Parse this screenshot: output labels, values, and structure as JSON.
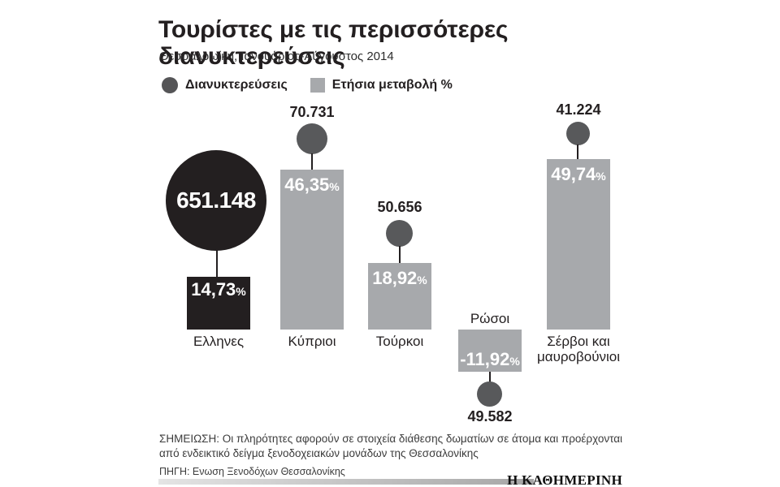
{
  "header": {
    "title": "Τουρίστες με τις περισσότερες διανυκτερεύσεις",
    "subtitle": "Θεσσαλοωίκη, Ιανουάριος-Αύγουστος 2014"
  },
  "legend": {
    "nights_label": "Διανυκτερεύσεις",
    "change_label": "Ετήσια μεταβολή %"
  },
  "colors": {
    "ink": "#231f20",
    "bubble_gray": "#58595b",
    "bar_gray": "#a7a9ac"
  },
  "shared": {
    "percent_suffix": "%"
  },
  "groups": [
    {
      "label": "Ελληνες",
      "nights": "651.148",
      "change": "14,73"
    },
    {
      "label": "Κύπριοι",
      "nights": "70.731",
      "change": "46,35"
    },
    {
      "label": "Τούρκοι",
      "nights": "50.656",
      "change": "18,92"
    },
    {
      "label": "Ρώσοι",
      "nights": "49.582",
      "change": "-11,92"
    },
    {
      "label": "Σέρβοι και μαυροβούνιοι",
      "nights": "41.224",
      "change": "49,74"
    }
  ],
  "chart_data": {
    "type": "bar",
    "title": "Τουρίστες με τις περισσότερες διανυκτερεύσεις",
    "subtitle": "Θεσσαλοωίκη, Ιανουάριος-Αύγουστος 2014",
    "categories": [
      "Ελληνες",
      "Κύπριοι",
      "Τούρκοι",
      "Ρώσοι",
      "Σέρβοι και μαυροβούνιοι"
    ],
    "series": [
      {
        "name": "Διανυκτερεύσεις",
        "type": "bubble",
        "values": [
          651148,
          70731,
          50656,
          49582,
          41224
        ]
      },
      {
        "name": "Ετήσια μεταβολή %",
        "type": "bar",
        "values": [
          14.73,
          46.35,
          18.92,
          -11.92,
          49.74
        ]
      }
    ],
    "ylabel": "",
    "grid": false,
    "legend_position": "top",
    "baseline": 0
  },
  "footer": {
    "note": "ΣΗΜΕΙΩΣΗ: Οι πληρότητες αφορούν σε στοιχεία διάθεσης δωματίων σε άτομα και προέρχονται από ενδεικτικό δείγμα ξενοδοχειακών μονάδων της Θεσσαλονίκης",
    "source": "ΠΗΓΗ: Ενωση Ξενοδόχων Θεσσαλονίκης",
    "brand": "Η ΚΑΘΗΜΕΡΙΝΗ"
  }
}
